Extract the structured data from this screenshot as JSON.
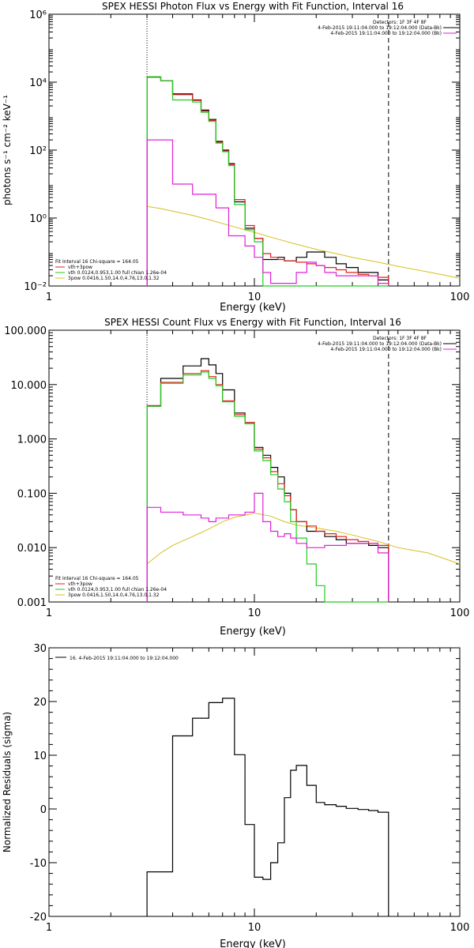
{
  "colors": {
    "data": "#000000",
    "total": "#e0201a",
    "thermal": "#22cc22",
    "bkg": "#e020d8",
    "powerlaw": "#d4c020"
  },
  "chart_data": [
    {
      "type": "line",
      "title": "SPEX HESSI Photon Flux vs Energy with Fit Function, Interval 16",
      "xlabel": "Energy (keV)",
      "ylabel": "photons s⁻¹ cm⁻² keV⁻¹",
      "xscale": "log",
      "yscale": "log",
      "xlim": [
        1,
        100
      ],
      "ylim": [
        0.01,
        1000000
      ],
      "x_ticks": [
        1,
        10,
        100
      ],
      "x_tick_labels": [
        "1",
        "10",
        "100"
      ],
      "y_ticks": [
        0.01,
        1,
        100,
        10000,
        1000000
      ],
      "y_tick_labels": [
        "10⁻²",
        "10⁰",
        "10²",
        "10⁴",
        "10⁶"
      ],
      "vlines": [
        {
          "x": 3,
          "style": "dotted"
        },
        {
          "x": 45,
          "style": "dashed"
        }
      ],
      "legend_right": {
        "header": "Detectors: 1F 3F 4F 8F",
        "items": [
          {
            "text": "4-Feb-2015 19:11:04.000 to 19:12:04.000 (Data-Bk)",
            "color": "data"
          },
          {
            "text": "4-Feb-2015 19:11:04.000 to 19:12:04.000 (Bk)",
            "color": "bkg"
          }
        ]
      },
      "legend_left": {
        "header": "Fit Interval 16   Chi-square = 164.05",
        "items": [
          {
            "text": "vth+3pow",
            "color": "total"
          },
          {
            "text": "vth 0.0124,0.953,1.00   full chian 1.26e-04",
            "color": "thermal"
          },
          {
            "text": "3pow 0.0416,1.50,14.0,4.76,13.0,1.32",
            "color": "powerlaw"
          }
        ]
      },
      "edges": [
        3.0,
        3.5,
        4.0,
        4.5,
        5.0,
        5.5,
        6.0,
        6.5,
        7.0,
        7.5,
        8.0,
        9.0,
        10.0,
        11.0,
        12.0,
        13.0,
        14.0,
        15.0,
        16.0,
        18.0,
        20.0,
        22.0,
        25.0,
        28.0,
        32.0,
        36.0,
        40.0,
        45.0
      ],
      "series": [
        {
          "name": "Data-Bk",
          "color": "data",
          "values": [
            14000,
            11000,
            4500,
            4500,
            3000,
            1500,
            800,
            180,
            100,
            40,
            3,
            0.5,
            0.25,
            0.06,
            0.06,
            0.07,
            0.055,
            0.055,
            0.07,
            0.1,
            0.1,
            0.07,
            0.045,
            0.035,
            0.025,
            0.025,
            0.015
          ]
        },
        {
          "name": "vth+3pow",
          "color": "total",
          "values": [
            14500,
            11000,
            4300,
            4300,
            2900,
            1400,
            750,
            170,
            95,
            38,
            3.5,
            0.6,
            0.25,
            0.09,
            0.07,
            0.06,
            0.055,
            0.055,
            0.05,
            0.045,
            0.04,
            0.035,
            0.03,
            0.025,
            0.022,
            0.02,
            0.018
          ]
        },
        {
          "name": "vth",
          "color": "thermal",
          "values": [
            14500,
            11000,
            3000,
            3000,
            2600,
            1300,
            700,
            160,
            90,
            35,
            2.5,
            0.45,
            0.2,
            0.01,
            0.01,
            0.01,
            0.01,
            0.01,
            0.01,
            0.01,
            0.01,
            0.01,
            0.01,
            0.01,
            0.01,
            0.01,
            0.01
          ]
        },
        {
          "name": "Bk",
          "color": "bkg",
          "values": [
            200,
            200,
            10,
            10,
            5,
            5,
            5,
            2,
            2,
            0.3,
            0.3,
            0.15,
            0.07,
            0.025,
            0.012,
            0.012,
            0.012,
            0.012,
            0.025,
            0.05,
            0.04,
            0.025,
            0.02,
            0.02,
            0.02,
            0.02,
            0.012
          ]
        }
      ],
      "powerlaw": {
        "name": "3pow",
        "color": "powerlaw",
        "x": [
          3,
          3.5,
          4,
          5,
          6,
          8,
          10,
          13,
          16,
          20,
          25,
          30,
          40,
          50,
          70,
          100
        ],
        "y": [
          2.2,
          1.9,
          1.6,
          1.2,
          0.9,
          0.55,
          0.38,
          0.24,
          0.17,
          0.12,
          0.09,
          0.07,
          0.05,
          0.038,
          0.026,
          0.017
        ]
      }
    },
    {
      "type": "line",
      "title": "SPEX HESSI Count Flux vs Energy with Fit Function, Interval 16",
      "xlabel": "Energy (keV)",
      "ylabel": "",
      "xscale": "log",
      "yscale": "log",
      "xlim": [
        1,
        100
      ],
      "ylim": [
        0.001,
        100
      ],
      "x_ticks": [
        1,
        10,
        100
      ],
      "x_tick_labels": [
        "1",
        "10",
        "100"
      ],
      "y_ticks": [
        0.001,
        0.01,
        0.1,
        1,
        10,
        100
      ],
      "y_tick_labels": [
        "0.001",
        "0.010",
        "0.100",
        "1.000",
        "10.000",
        "100.000"
      ],
      "vlines": [
        {
          "x": 3,
          "style": "dotted"
        },
        {
          "x": 45,
          "style": "dashed"
        }
      ],
      "legend_right": {
        "header": "Detectors: 1F 3F 4F 8F",
        "items": [
          {
            "text": "4-Feb-2015 19:11:04.000 to 19:12:04.000 (Data-Bk)",
            "color": "data"
          },
          {
            "text": "4-Feb-2015 19:11:04.000 to 19:12:04.000 (Bk)",
            "color": "bkg"
          }
        ]
      },
      "legend_left": {
        "header": "Fit Interval 16   Chi-square = 164.05",
        "items": [
          {
            "text": "vth+3pow",
            "color": "total"
          },
          {
            "text": "vth 0.0124,0.953,1.00   full chian 1.26e-04",
            "color": "thermal"
          },
          {
            "text": "3pow 0.0416,1.50,14.0,4.76,13.0,1.32",
            "color": "powerlaw"
          }
        ]
      },
      "edges": [
        3.0,
        3.5,
        4.0,
        4.5,
        5.0,
        5.5,
        6.0,
        6.5,
        7.0,
        7.5,
        8.0,
        9.0,
        10.0,
        11.0,
        12.0,
        13.0,
        14.0,
        15.0,
        16.0,
        18.0,
        20.0,
        22.0,
        25.0,
        28.0,
        32.0,
        36.0,
        40.0,
        45.0
      ],
      "series": [
        {
          "name": "Data-Bk",
          "color": "data",
          "values": [
            4,
            13,
            13,
            22,
            22,
            30,
            23,
            16,
            8,
            8,
            3,
            2,
            0.7,
            0.5,
            0.3,
            0.2,
            0.1,
            0.05,
            0.03,
            0.02,
            0.02,
            0.016,
            0.014,
            0.012,
            0.012,
            0.011,
            0.01
          ]
        },
        {
          "name": "vth+3pow",
          "color": "total",
          "values": [
            4.1,
            11,
            11,
            16,
            16,
            18,
            14,
            10,
            5,
            5,
            2.8,
            2,
            0.65,
            0.45,
            0.25,
            0.15,
            0.09,
            0.05,
            0.03,
            0.025,
            0.02,
            0.018,
            0.016,
            0.014,
            0.013,
            0.012,
            0.011
          ]
        },
        {
          "name": "vth",
          "color": "thermal",
          "values": [
            4,
            10.5,
            10.5,
            15,
            15,
            17,
            13,
            9.5,
            4.8,
            4.8,
            2.6,
            1.9,
            0.6,
            0.4,
            0.22,
            0.12,
            0.07,
            0.03,
            0.015,
            0.005,
            0.002,
            0.001,
            0.001,
            0.001,
            0.001,
            0.001,
            0.001
          ]
        },
        {
          "name": "Bk",
          "color": "bkg",
          "values": [
            0.055,
            0.045,
            0.045,
            0.04,
            0.04,
            0.035,
            0.03,
            0.035,
            0.035,
            0.04,
            0.04,
            0.045,
            0.1,
            0.03,
            0.02,
            0.016,
            0.018,
            0.015,
            0.012,
            0.01,
            0.01,
            0.011,
            0.011,
            0.012,
            0.012,
            0.012,
            0.008
          ]
        }
      ],
      "powerlaw": {
        "name": "3pow",
        "color": "powerlaw",
        "x": [
          3,
          3.5,
          4,
          5,
          6,
          7,
          8,
          10,
          12,
          14,
          16,
          20,
          25,
          30,
          40,
          50,
          70,
          100
        ],
        "y": [
          0.005,
          0.008,
          0.011,
          0.016,
          0.022,
          0.03,
          0.036,
          0.043,
          0.038,
          0.03,
          0.026,
          0.023,
          0.02,
          0.017,
          0.013,
          0.01,
          0.008,
          0.005
        ]
      }
    },
    {
      "type": "line",
      "title": "",
      "xlabel": "Energy (keV)",
      "ylabel": "Normalized Residuals (sigma)",
      "xscale": "log",
      "yscale": "linear",
      "xlim": [
        1,
        100
      ],
      "ylim": [
        -20,
        30
      ],
      "x_ticks": [
        1,
        10,
        100
      ],
      "x_tick_labels": [
        "1",
        "10",
        "100"
      ],
      "y_ticks": [
        -20,
        -10,
        0,
        10,
        20,
        30
      ],
      "y_tick_labels": [
        "-20",
        "-10",
        "0",
        "10",
        "20",
        "30"
      ],
      "legend": {
        "text": "16.  4-Feb-2015 19:11:04.000 to 19:12:04.000"
      },
      "edges": [
        3.0,
        4.0,
        5.0,
        6.0,
        7.0,
        8.0,
        9.0,
        10.0,
        11.0,
        12.0,
        13.0,
        14.0,
        15.0,
        16.0,
        18.0,
        20.0,
        22.0,
        25.0,
        28.0,
        32.0,
        36.0,
        40.0,
        45.0
      ],
      "series": [
        {
          "name": "16.",
          "color": "data",
          "values": [
            -11.7,
            13.6,
            16.9,
            19.8,
            20.6,
            10.1,
            -2.9,
            -12.7,
            -13.1,
            -10.0,
            -6.3,
            2.1,
            7.2,
            8.1,
            4.4,
            1.2,
            0.8,
            0.5,
            0.1,
            -0.1,
            -0.3,
            -0.6
          ]
        }
      ]
    }
  ]
}
